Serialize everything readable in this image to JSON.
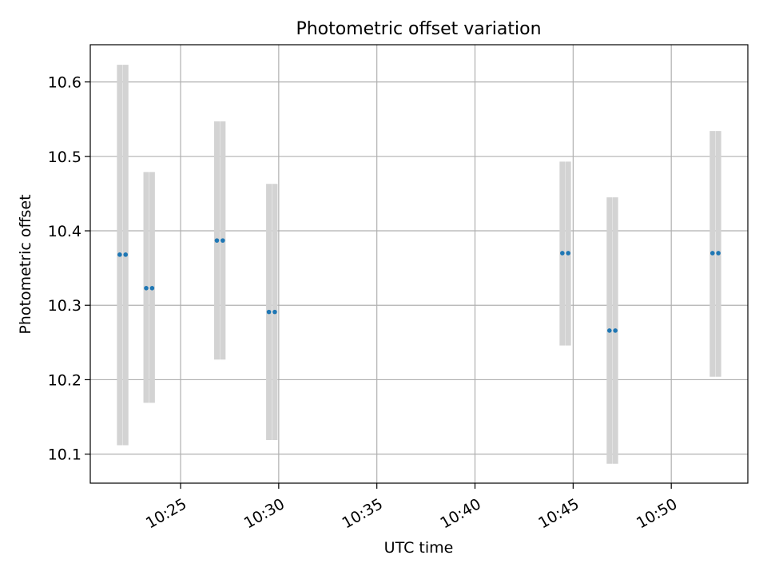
{
  "chart_data": {
    "type": "scatter",
    "title": "Photometric offset variation",
    "xlabel": "UTC time",
    "ylabel": "Photometric offset",
    "grid": true,
    "x_unit": "minutes after 10:00 UTC",
    "xlim": [
      20.4,
      53.9
    ],
    "ylim": [
      10.061,
      10.65
    ],
    "xticks": [
      {
        "value": 25,
        "label": "10:25"
      },
      {
        "value": 30,
        "label": "10:30"
      },
      {
        "value": 35,
        "label": "10:35"
      },
      {
        "value": 40,
        "label": "10:40"
      },
      {
        "value": 45,
        "label": "10:45"
      },
      {
        "value": 50,
        "label": "10:50"
      }
    ],
    "yticks": [
      {
        "value": 10.1,
        "label": "10.1"
      },
      {
        "value": 10.2,
        "label": "10.2"
      },
      {
        "value": 10.3,
        "label": "10.3"
      },
      {
        "value": 10.4,
        "label": "10.4"
      },
      {
        "value": 10.5,
        "label": "10.5"
      },
      {
        "value": 10.6,
        "label": "10.6"
      }
    ],
    "series": [
      {
        "name": "offset",
        "color": "#1f77b4",
        "error_color": "#d3d3d3",
        "points": [
          {
            "x": 21.9,
            "y": 10.368,
            "err_low": 10.112,
            "err_high": 10.623
          },
          {
            "x": 22.2,
            "y": 10.368,
            "err_low": 10.112,
            "err_high": 10.623
          },
          {
            "x": 23.25,
            "y": 10.323,
            "err_low": 10.169,
            "err_high": 10.479
          },
          {
            "x": 23.55,
            "y": 10.323,
            "err_low": 10.169,
            "err_high": 10.479
          },
          {
            "x": 26.85,
            "y": 10.387,
            "err_low": 10.227,
            "err_high": 10.547
          },
          {
            "x": 27.15,
            "y": 10.387,
            "err_low": 10.227,
            "err_high": 10.547
          },
          {
            "x": 29.5,
            "y": 10.291,
            "err_low": 10.119,
            "err_high": 10.463
          },
          {
            "x": 29.8,
            "y": 10.291,
            "err_low": 10.119,
            "err_high": 10.463
          },
          {
            "x": 44.45,
            "y": 10.37,
            "err_low": 10.246,
            "err_high": 10.493
          },
          {
            "x": 44.75,
            "y": 10.37,
            "err_low": 10.246,
            "err_high": 10.493
          },
          {
            "x": 46.85,
            "y": 10.266,
            "err_low": 10.087,
            "err_high": 10.445
          },
          {
            "x": 47.15,
            "y": 10.266,
            "err_low": 10.087,
            "err_high": 10.445
          },
          {
            "x": 52.1,
            "y": 10.37,
            "err_low": 10.204,
            "err_high": 10.534
          },
          {
            "x": 52.4,
            "y": 10.37,
            "err_low": 10.204,
            "err_high": 10.534
          }
        ]
      }
    ]
  }
}
